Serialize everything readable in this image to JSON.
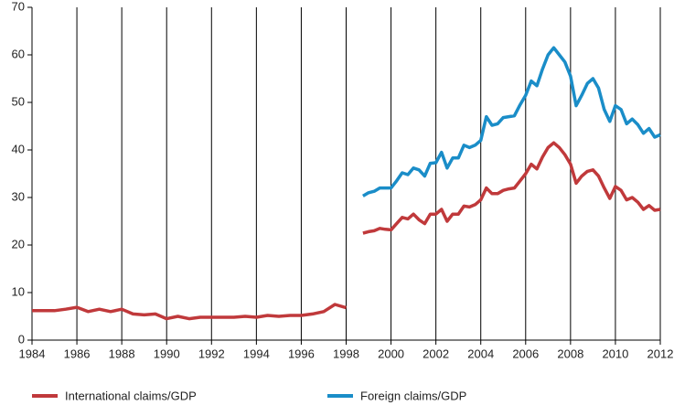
{
  "chart_data": {
    "type": "line",
    "x": [
      1984,
      1984.5,
      1985,
      1985.5,
      1986,
      1986.5,
      1987,
      1987.5,
      1988,
      1988.5,
      1989,
      1989.5,
      1990,
      1990.5,
      1991,
      1991.5,
      1992,
      1992.5,
      1993,
      1993.5,
      1994,
      1994.5,
      1995,
      1995.5,
      1996,
      1996.5,
      1997,
      1997.5,
      1998,
      1998.5,
      1998.75,
      1999,
      1999.25,
      1999.5,
      1999.75,
      2000,
      2000.25,
      2000.5,
      2000.75,
      2001,
      2001.25,
      2001.5,
      2001.75,
      2002,
      2002.25,
      2002.5,
      2002.75,
      2003,
      2003.25,
      2003.5,
      2003.75,
      2004,
      2004.25,
      2004.5,
      2004.75,
      2005,
      2005.25,
      2005.5,
      2005.75,
      2006,
      2006.25,
      2006.5,
      2006.75,
      2007,
      2007.25,
      2007.5,
      2007.75,
      2008,
      2008.25,
      2008.5,
      2008.75,
      2009,
      2009.25,
      2009.5,
      2009.75,
      2010,
      2010.25,
      2010.5,
      2010.75,
      2011,
      2011.25,
      2011.5,
      2011.75,
      2012
    ],
    "series": [
      {
        "name": "International claims/GDP",
        "color": "#c0393b",
        "values": [
          6.2,
          6.2,
          6.2,
          6.5,
          6.9,
          6.0,
          6.5,
          6.0,
          6.5,
          5.5,
          5.3,
          5.5,
          4.5,
          5.0,
          4.5,
          4.8,
          4.8,
          4.8,
          4.8,
          5.0,
          4.8,
          5.2,
          5.0,
          5.2,
          5.2,
          5.5,
          6.0,
          7.5,
          6.8,
          null,
          22.5,
          22.8,
          23,
          23.5,
          23.3,
          23.2,
          24.5,
          25.8,
          25.5,
          26.5,
          25.3,
          24.5,
          26.5,
          26.5,
          27.5,
          25,
          26.5,
          26.5,
          28.2,
          28,
          28.5,
          29.5,
          32,
          30.8,
          30.8,
          31.5,
          31.8,
          32,
          33.5,
          35,
          37,
          36,
          38.5,
          40.5,
          41.5,
          40.5,
          39,
          37,
          33,
          34.5,
          35.5,
          35.8,
          34.5,
          32,
          29.8,
          32.3,
          31.5,
          29.5,
          30,
          29,
          27.5,
          28.3,
          27.3,
          27.5
        ]
      },
      {
        "name": "Foreign claims/GDP",
        "color": "#1a8dc8",
        "values": [
          null,
          null,
          null,
          null,
          null,
          null,
          null,
          null,
          null,
          null,
          null,
          null,
          null,
          null,
          null,
          null,
          null,
          null,
          null,
          null,
          null,
          null,
          null,
          null,
          null,
          null,
          null,
          null,
          null,
          null,
          30.3,
          31,
          31.3,
          32,
          32,
          32,
          33.5,
          35.2,
          34.8,
          36.2,
          35.8,
          34.5,
          37.2,
          37.3,
          39.5,
          36.2,
          38.3,
          38.3,
          41,
          40.5,
          41,
          42,
          47,
          45.2,
          45.5,
          46.8,
          47,
          47.2,
          49.5,
          51.5,
          54.5,
          53.5,
          57,
          60,
          61.5,
          60,
          58.5,
          55.5,
          49.3,
          51.5,
          54,
          55,
          53,
          48.5,
          46,
          49.3,
          48.5,
          45.5,
          46.5,
          45.3,
          43.5,
          44.5,
          42.7,
          43.2
        ]
      }
    ],
    "xlim": [
      1984,
      2012
    ],
    "xticks": [
      1984,
      1986,
      1988,
      1990,
      1992,
      1994,
      1996,
      1998,
      2000,
      2002,
      2004,
      2006,
      2008,
      2010,
      2012
    ],
    "ylim": [
      0,
      70
    ],
    "yticks": [
      0,
      10,
      20,
      30,
      40,
      50,
      60,
      70
    ],
    "grid": "x"
  }
}
